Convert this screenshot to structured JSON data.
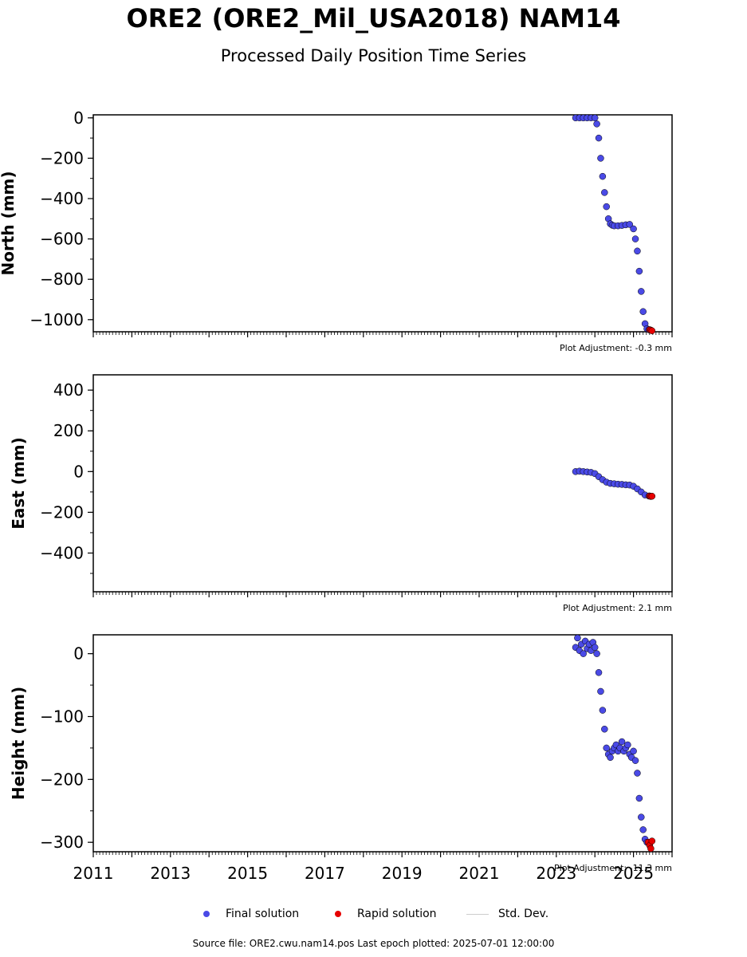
{
  "header": {
    "title": "ORE2 (ORE2_Mil_USA2018) NAM14",
    "subtitle": "Processed Daily Position Time Series"
  },
  "legend": {
    "final": "Final solution",
    "rapid": "Rapid solution",
    "std": "Std. Dev."
  },
  "footer": {
    "source": "Source file: ORE2.cwu.nam14.pos  Last epoch plotted: 2025-07-01 12:00:00"
  },
  "colors": {
    "final": "#4a4ae6",
    "rapid": "#e60000",
    "std": "#cccccc",
    "edge": "#000000"
  },
  "chart_data": [
    {
      "type": "scatter",
      "ylabel": "North (mm)",
      "ylim": [
        -1060,
        15
      ],
      "yticks": [
        0,
        -200,
        -400,
        -600,
        -800,
        -1000
      ],
      "ytick_labels": [
        "0",
        "−200",
        "−400",
        "−600",
        "−800",
        "−1000"
      ],
      "xlim": [
        2011.0,
        2026.0
      ],
      "adjustment": "Plot Adjustment: -0.3 mm",
      "series": [
        {
          "name": "Final solution",
          "x": [
            2023.5,
            2023.6,
            2023.7,
            2023.8,
            2023.9,
            2024.0,
            2024.05,
            2024.1,
            2024.15,
            2024.2,
            2024.25,
            2024.3,
            2024.35,
            2024.4,
            2024.45,
            2024.5,
            2024.6,
            2024.7,
            2024.8,
            2024.9,
            2025.0,
            2025.05,
            2025.1,
            2025.15,
            2025.2,
            2025.25,
            2025.3,
            2025.35,
            2025.4
          ],
          "y": [
            0,
            0,
            0,
            0,
            0,
            0,
            -30,
            -100,
            -200,
            -290,
            -370,
            -440,
            -500,
            -525,
            -532,
            -535,
            -535,
            -533,
            -530,
            -528,
            -550,
            -600,
            -660,
            -760,
            -860,
            -960,
            -1020,
            -1045,
            -1050
          ]
        },
        {
          "name": "Rapid solution",
          "x": [
            2025.42,
            2025.45,
            2025.48
          ],
          "y": [
            -1050,
            -1052,
            -1055
          ]
        }
      ]
    },
    {
      "type": "scatter",
      "ylabel": "East (mm)",
      "ylim": [
        -590,
        475
      ],
      "yticks": [
        400,
        200,
        0,
        -200,
        -400
      ],
      "ytick_labels": [
        "400",
        "200",
        "0",
        "−200",
        "−400"
      ],
      "xlim": [
        2011.0,
        2026.0
      ],
      "adjustment": "Plot Adjustment: 2.1 mm",
      "series": [
        {
          "name": "Final solution",
          "x": [
            2023.5,
            2023.6,
            2023.7,
            2023.8,
            2023.9,
            2024.0,
            2024.1,
            2024.2,
            2024.3,
            2024.4,
            2024.5,
            2024.6,
            2024.7,
            2024.8,
            2024.9,
            2025.0,
            2025.1,
            2025.2,
            2025.3,
            2025.4
          ],
          "y": [
            0,
            2,
            0,
            -2,
            -4,
            -10,
            -25,
            -40,
            -52,
            -58,
            -60,
            -62,
            -63,
            -65,
            -66,
            -72,
            -85,
            -100,
            -115,
            -120
          ]
        },
        {
          "name": "Rapid solution",
          "x": [
            2025.42,
            2025.45,
            2025.48
          ],
          "y": [
            -120,
            -122,
            -121
          ]
        }
      ]
    },
    {
      "type": "scatter",
      "ylabel": "Height (mm)",
      "ylim": [
        -315,
        30
      ],
      "yticks": [
        0,
        -100,
        -200,
        -300
      ],
      "ytick_labels": [
        "0",
        "−100",
        "−200",
        "−300"
      ],
      "xlim": [
        2011.0,
        2026.0
      ],
      "adjustment": "Plot Adjustment: -11.3 mm",
      "series": [
        {
          "name": "Final solution",
          "x": [
            2023.5,
            2023.55,
            2023.6,
            2023.65,
            2023.7,
            2023.75,
            2023.8,
            2023.85,
            2023.9,
            2023.95,
            2024.0,
            2024.05,
            2024.1,
            2024.15,
            2024.2,
            2024.25,
            2024.3,
            2024.35,
            2024.4,
            2024.45,
            2024.5,
            2024.55,
            2024.6,
            2024.65,
            2024.7,
            2024.75,
            2024.8,
            2024.85,
            2024.9,
            2024.95,
            2025.0,
            2025.05,
            2025.1,
            2025.15,
            2025.2,
            2025.25,
            2025.3,
            2025.35
          ],
          "y": [
            10,
            25,
            5,
            15,
            0,
            20,
            8,
            15,
            5,
            18,
            10,
            0,
            -30,
            -60,
            -90,
            -120,
            -150,
            -160,
            -165,
            -155,
            -150,
            -145,
            -155,
            -150,
            -140,
            -155,
            -150,
            -145,
            -160,
            -165,
            -155,
            -170,
            -190,
            -230,
            -260,
            -280,
            -295,
            -300
          ]
        },
        {
          "name": "Rapid solution",
          "x": [
            2025.38,
            2025.42,
            2025.45,
            2025.48
          ],
          "y": [
            -300,
            -305,
            -310,
            -298
          ]
        }
      ]
    }
  ]
}
